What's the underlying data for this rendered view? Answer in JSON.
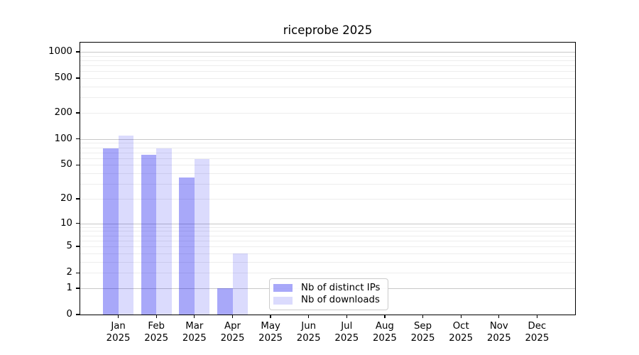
{
  "chart_data": {
    "type": "bar",
    "title": "riceprobe 2025",
    "categories": [
      "Jan 2025",
      "Feb 2025",
      "Mar 2025",
      "Apr 2025",
      "May 2025",
      "Jun 2025",
      "Jul 2025",
      "Aug 2025",
      "Sep 2025",
      "Oct 2025",
      "Nov 2025",
      "Dec 2025"
    ],
    "series": [
      {
        "name": "Nb of distinct IPs",
        "color": "#0000ee",
        "alpha": 0.34,
        "values": [
          78,
          66,
          36,
          1,
          0,
          0,
          0,
          0,
          0,
          0,
          0,
          0
        ]
      },
      {
        "name": "Nb of downloads",
        "color": "#0000ee",
        "alpha": 0.14,
        "values": [
          110,
          78,
          59,
          4,
          0,
          0,
          0,
          0,
          0,
          0,
          0,
          0
        ]
      }
    ],
    "yscale": "log1p",
    "yticks": [
      0,
      1,
      2,
      5,
      10,
      20,
      50,
      100,
      200,
      500,
      1000
    ],
    "ylim": [
      0,
      1275
    ],
    "xlabel": "",
    "ylabel": "",
    "grid": true,
    "legend_position": "lower center",
    "axis_color": "#000000",
    "grid_major_color": "#c8c8c8",
    "grid_minor_color": "#ededed",
    "background_color": "#ffffff"
  }
}
